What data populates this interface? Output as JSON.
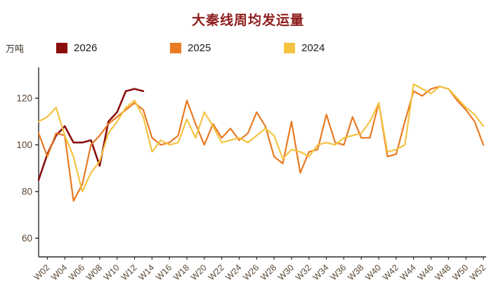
{
  "header": {
    "title": "大秦线周均发运量",
    "unit_label": "万吨"
  },
  "colors": {
    "title": "#8e1c1c",
    "axis": "#2b2b2b",
    "tick_text": "#5a4632"
  },
  "legend": [
    {
      "label": "2026",
      "color": "#8a0e0e"
    },
    {
      "label": "2025",
      "color": "#e87a22"
    },
    {
      "label": "2024",
      "color": "#f4c341"
    }
  ],
  "chart_data": {
    "type": "line",
    "title": "大秦线周均发运量",
    "ylabel": "万吨",
    "xlabel": "",
    "grid": false,
    "legend_position": "top",
    "weeks_total": 52,
    "ylim": [
      52,
      132
    ],
    "yticks": [
      60,
      80,
      100,
      120
    ],
    "x_tick_labels": [
      "W02",
      "W04",
      "W06",
      "W08",
      "W10",
      "W12",
      "W14",
      "W16",
      "W18",
      "W20",
      "W22",
      "W24",
      "W26",
      "W28",
      "W30",
      "W32",
      "W34",
      "W36",
      "W38",
      "W40",
      "W42",
      "W44",
      "W46",
      "W48",
      "W50",
      "W52"
    ],
    "series": [
      {
        "name": "2026",
        "color": "#8a0e0e",
        "stroke_width": 2.6,
        "values": [
          85,
          96,
          104,
          108,
          101,
          101,
          102,
          91,
          110,
          114,
          123,
          124,
          123
        ]
      },
      {
        "name": "2025",
        "color": "#e87a22",
        "stroke_width": 2.2,
        "values": [
          105,
          95,
          105,
          104,
          76,
          83,
          100,
          104,
          109,
          112,
          115,
          118,
          115,
          103,
          100,
          101,
          104,
          119,
          109,
          100,
          109,
          103,
          107,
          102,
          105,
          114,
          108,
          95,
          92,
          110,
          88,
          97,
          98,
          113,
          101,
          100,
          112,
          103,
          103,
          118,
          95,
          96,
          110,
          123,
          121,
          124,
          125,
          124,
          119,
          115,
          110,
          100
        ]
      },
      {
        "name": "2024",
        "color": "#f4c341",
        "stroke_width": 2.2,
        "values": [
          110,
          112,
          116,
          104,
          95,
          80,
          88,
          93,
          105,
          110,
          116,
          119,
          112,
          97,
          102,
          100,
          101,
          111,
          103,
          114,
          108,
          101,
          102,
          103,
          101,
          104,
          107,
          104,
          94,
          98,
          97,
          95,
          100,
          101,
          100,
          103,
          104,
          105,
          110,
          118,
          97,
          98,
          100,
          126,
          124,
          122,
          125,
          124,
          120,
          116,
          113,
          108
        ]
      }
    ]
  }
}
